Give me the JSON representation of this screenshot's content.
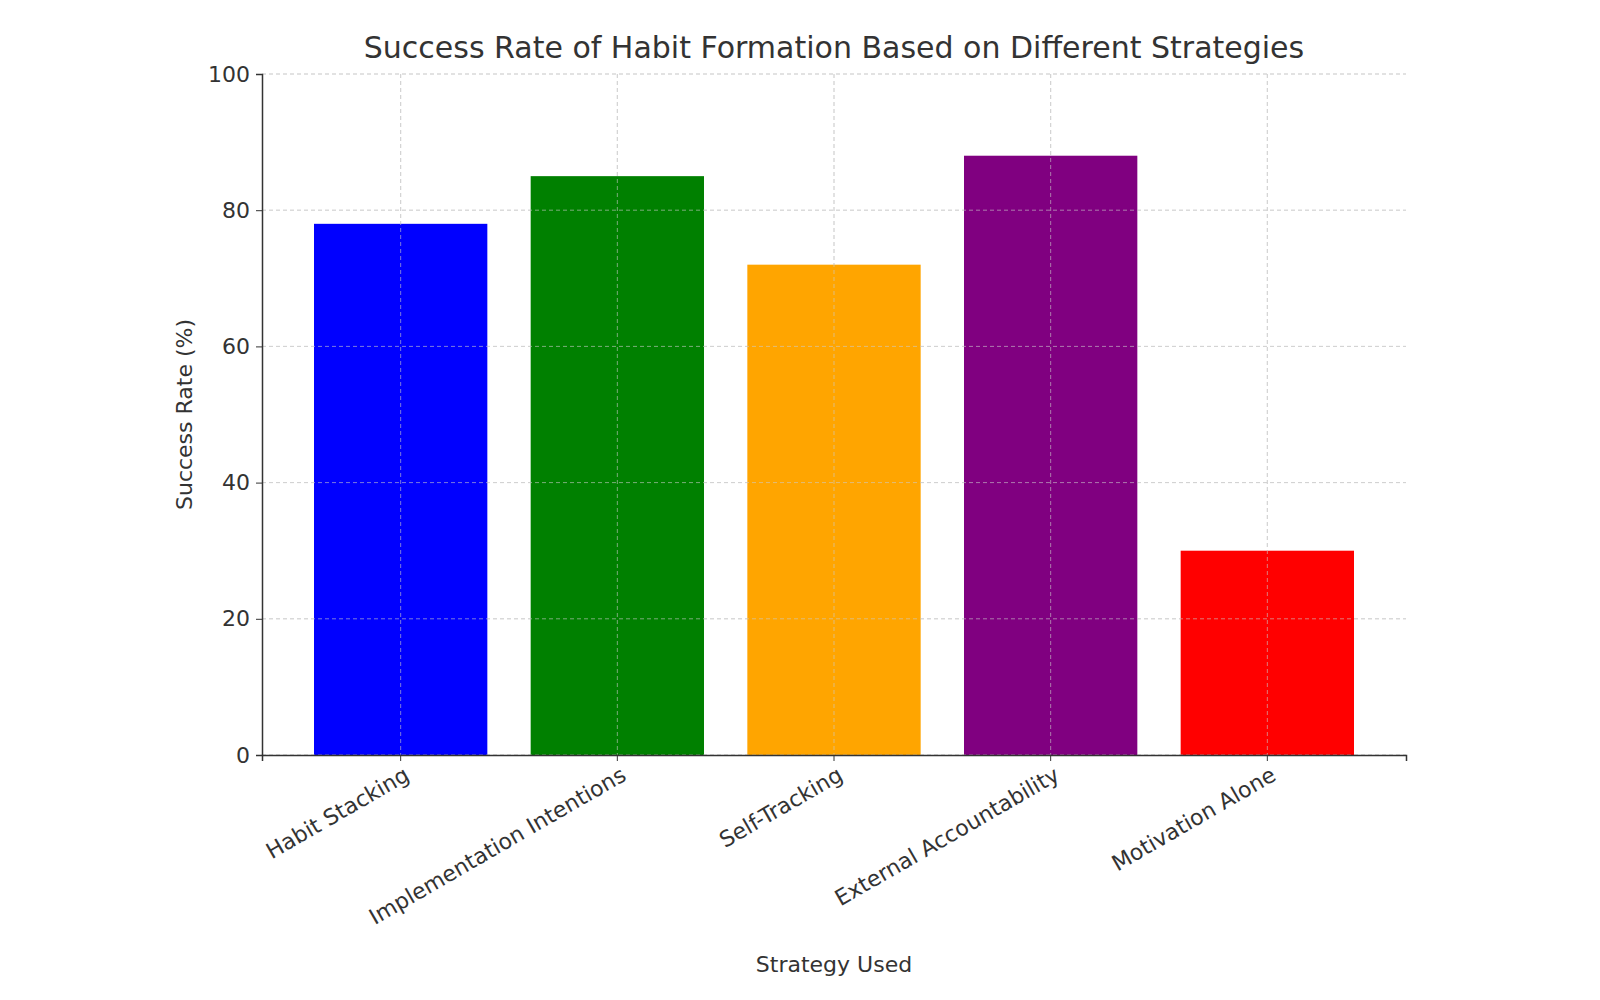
{
  "chart_data": {
    "type": "bar",
    "title": "Success Rate of Habit Formation Based on Different Strategies",
    "x_label": "Strategy Used",
    "y_label": "Success Rate (%)",
    "categories": [
      "Habit Stacking",
      "Implementation Intentions",
      "Self-Tracking",
      "External Accountability",
      "Motivation Alone"
    ],
    "values": [
      78,
      85,
      72,
      88,
      30
    ],
    "colors": [
      "#0000ff",
      "#008000",
      "#ffa500",
      "#800080",
      "#ff0000"
    ],
    "ylim": [
      0,
      100
    ],
    "yticks": [
      0,
      20,
      40,
      60,
      80,
      100
    ],
    "grid": true
  }
}
